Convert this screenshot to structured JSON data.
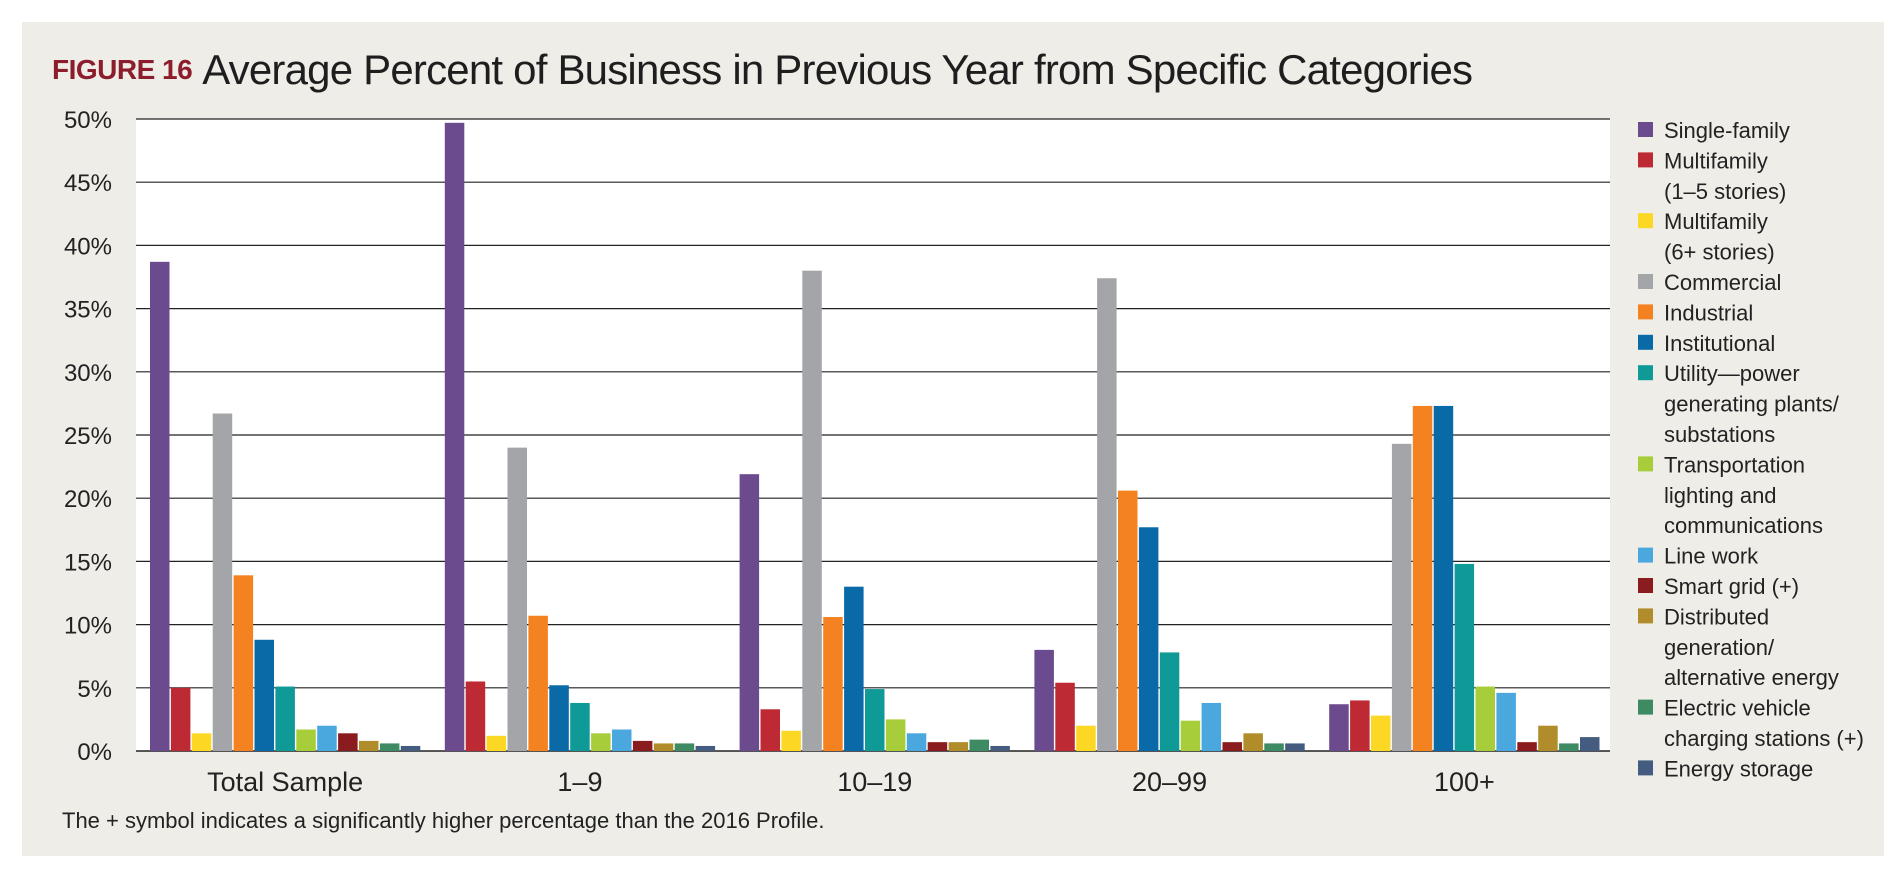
{
  "figure": {
    "label": "FIGURE 16",
    "title": "Average Percent of Business in Previous Year from Specific Categories",
    "footnote": "The + symbol indicates a significantly higher percentage than the 2016 Profile."
  },
  "colors": {
    "frame": "#efede8",
    "plot": "#ffffff",
    "label_red": "#8c1d2c",
    "gridline": "#222222"
  },
  "chart_data": {
    "type": "bar",
    "title": "Average Percent of Business in Previous Year from Specific Categories",
    "xlabel": "",
    "ylabel": "",
    "ylim": [
      0,
      50
    ],
    "y_ticks": [
      "0%",
      "5%",
      "10%",
      "15%",
      "20%",
      "25%",
      "30%",
      "35%",
      "40%",
      "45%",
      "50%"
    ],
    "grid": true,
    "legend_position": "right",
    "categories": [
      "Total Sample",
      "1–9",
      "10–19",
      "20–99",
      "100+"
    ],
    "series": [
      {
        "name": "Single-family",
        "legend_lines": [
          "Single-family"
        ],
        "color": "#6b4a8e",
        "values": [
          38.7,
          49.7,
          21.9,
          8.0,
          3.7
        ]
      },
      {
        "name": "Multifamily (1–5 stories)",
        "legend_lines": [
          "Multifamily",
          "(1–5 stories)"
        ],
        "color": "#be2a33",
        "values": [
          5.0,
          5.5,
          3.3,
          5.4,
          4.0
        ]
      },
      {
        "name": "Multifamily (6+ stories)",
        "legend_lines": [
          "Multifamily",
          "(6+ stories)"
        ],
        "color": "#fcd723",
        "values": [
          1.4,
          1.2,
          1.6,
          2.0,
          2.8
        ]
      },
      {
        "name": "Commercial",
        "legend_lines": [
          "Commercial"
        ],
        "color": "#a3a5a8",
        "values": [
          26.7,
          24.0,
          38.0,
          37.4,
          24.3
        ]
      },
      {
        "name": "Industrial",
        "legend_lines": [
          "Industrial"
        ],
        "color": "#f58220",
        "values": [
          13.9,
          10.7,
          10.6,
          20.6,
          27.3
        ]
      },
      {
        "name": "Institutional",
        "legend_lines": [
          "Institutional"
        ],
        "color": "#0a6aa8",
        "values": [
          8.8,
          5.2,
          13.0,
          17.7,
          27.3
        ]
      },
      {
        "name": "Utility—power generating plants/substations",
        "legend_lines": [
          "Utility—power",
          "generating plants/",
          "substations"
        ],
        "color": "#0f9a98",
        "values": [
          5.1,
          3.8,
          4.9,
          7.8,
          14.8
        ]
      },
      {
        "name": "Transportation lighting and communications",
        "legend_lines": [
          "Transportation",
          "lighting and",
          "communications"
        ],
        "color": "#a8cd3a",
        "values": [
          1.7,
          1.4,
          2.5,
          2.4,
          5.1
        ]
      },
      {
        "name": "Line work",
        "legend_lines": [
          "Line work"
        ],
        "color": "#4aa8df",
        "values": [
          2.0,
          1.7,
          1.4,
          3.8,
          4.6
        ]
      },
      {
        "name": "Smart grid (+)",
        "legend_lines": [
          "Smart grid (+)"
        ],
        "color": "#8a1b1e",
        "values": [
          1.4,
          0.8,
          0.7,
          0.7,
          0.7
        ]
      },
      {
        "name": "Distributed generation/alternative energy",
        "legend_lines": [
          "Distributed",
          "generation/",
          "alternative energy"
        ],
        "color": "#b08d2a",
        "values": [
          0.8,
          0.6,
          0.7,
          1.4,
          2.0
        ]
      },
      {
        "name": "Electric vehicle charging stations (+)",
        "legend_lines": [
          "Electric vehicle",
          "charging stations (+)"
        ],
        "color": "#3e8a62",
        "values": [
          0.6,
          0.6,
          0.9,
          0.6,
          0.6
        ]
      },
      {
        "name": "Energy storage",
        "legend_lines": [
          "Energy storage"
        ],
        "color": "#435c7f",
        "values": [
          0.4,
          0.4,
          0.4,
          0.6,
          1.1
        ]
      }
    ]
  }
}
